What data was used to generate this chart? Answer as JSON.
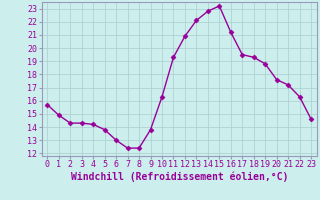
{
  "x": [
    0,
    1,
    2,
    3,
    4,
    5,
    6,
    7,
    8,
    9,
    10,
    11,
    12,
    13,
    14,
    15,
    16,
    17,
    18,
    19,
    20,
    21,
    22,
    23
  ],
  "y": [
    15.7,
    14.9,
    14.3,
    14.3,
    14.2,
    13.8,
    13.0,
    12.4,
    12.4,
    13.8,
    16.3,
    19.3,
    20.9,
    22.1,
    22.8,
    23.2,
    21.2,
    19.5,
    19.3,
    18.8,
    17.6,
    17.2,
    16.3,
    14.6
  ],
  "line_color": "#990099",
  "marker": "D",
  "marker_size": 2.5,
  "bg_color": "#cceeed",
  "grid_color": "#aacccc",
  "spine_color": "#9999bb",
  "xlabel": "Windchill (Refroidissement éolien,°C)",
  "xlabel_fontsize": 7,
  "ylim": [
    11.8,
    23.5
  ],
  "xlim": [
    -0.5,
    23.5
  ],
  "yticks": [
    12,
    13,
    14,
    15,
    16,
    17,
    18,
    19,
    20,
    21,
    22,
    23
  ],
  "xticks": [
    0,
    1,
    2,
    3,
    4,
    5,
    6,
    7,
    8,
    9,
    10,
    11,
    12,
    13,
    14,
    15,
    16,
    17,
    18,
    19,
    20,
    21,
    22,
    23
  ],
  "tick_fontsize": 6,
  "linewidth": 1.0
}
